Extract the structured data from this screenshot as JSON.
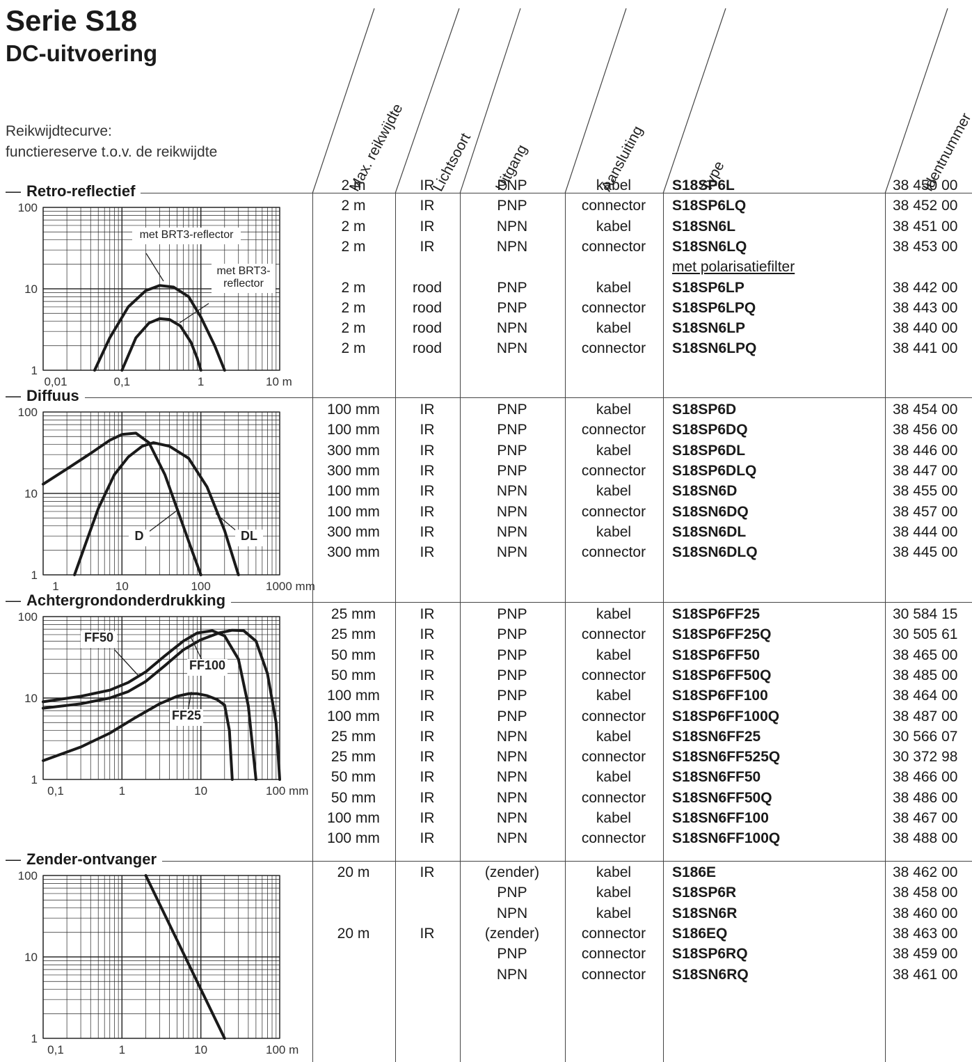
{
  "page": {
    "title": "Serie S18",
    "subtitle": "DC-uitvoering",
    "intro_line1": "Reikwijdtecurve:",
    "intro_line2": "functiereserve t.o.v. de reikwijdte"
  },
  "columns": [
    "Max. reikwijdte",
    "Lichtsoort",
    "Uitgang",
    "Aansluiting",
    "Type",
    "Identnummer"
  ],
  "sections": [
    {
      "label": "Retro-reflectief",
      "rows": [
        {
          "reach": "2 m",
          "light": "IR",
          "out": "PNP",
          "conn": "kabel",
          "type": "S18SP6L",
          "id": "38 450 00"
        },
        {
          "reach": "2 m",
          "light": "IR",
          "out": "PNP",
          "conn": "connector",
          "type": "S18SP6LQ",
          "id": "38 452 00"
        },
        {
          "reach": "2 m",
          "light": "IR",
          "out": "NPN",
          "conn": "kabel",
          "type": "S18SN6L",
          "id": "38 451 00"
        },
        {
          "reach": "2 m",
          "light": "IR",
          "out": "NPN",
          "conn": "connector",
          "type": "S18SN6LQ",
          "id": "38 453 00"
        },
        {
          "note": "met polarisatiefilter"
        },
        {
          "reach": "2 m",
          "light": "rood",
          "out": "PNP",
          "conn": "kabel",
          "type": "S18SP6LP",
          "id": "38 442 00"
        },
        {
          "reach": "2 m",
          "light": "rood",
          "out": "PNP",
          "conn": "connector",
          "type": "S18SP6LPQ",
          "id": "38 443 00"
        },
        {
          "reach": "2 m",
          "light": "rood",
          "out": "NPN",
          "conn": "kabel",
          "type": "S18SN6LP",
          "id": "38 440 00"
        },
        {
          "reach": "2 m",
          "light": "rood",
          "out": "NPN",
          "conn": "connector",
          "type": "S18SN6LPQ",
          "id": "38 441 00"
        }
      ]
    },
    {
      "label": "Diffuus",
      "rows": [
        {
          "reach": "100 mm",
          "light": "IR",
          "out": "PNP",
          "conn": "kabel",
          "type": "S18SP6D",
          "id": "38 454 00"
        },
        {
          "reach": "100 mm",
          "light": "IR",
          "out": "PNP",
          "conn": "connector",
          "type": "S18SP6DQ",
          "id": "38 456 00"
        },
        {
          "reach": "300 mm",
          "light": "IR",
          "out": "PNP",
          "conn": "kabel",
          "type": "S18SP6DL",
          "id": "38 446 00"
        },
        {
          "reach": "300 mm",
          "light": "IR",
          "out": "PNP",
          "conn": "connector",
          "type": "S18SP6DLQ",
          "id": "38 447 00"
        },
        {
          "reach": "100 mm",
          "light": "IR",
          "out": "NPN",
          "conn": "kabel",
          "type": "S18SN6D",
          "id": "38 455 00"
        },
        {
          "reach": "100 mm",
          "light": "IR",
          "out": "NPN",
          "conn": "connector",
          "type": "S18SN6DQ",
          "id": "38 457 00"
        },
        {
          "reach": "300 mm",
          "light": "IR",
          "out": "NPN",
          "conn": "kabel",
          "type": "S18SN6DL",
          "id": "38 444 00"
        },
        {
          "reach": "300 mm",
          "light": "IR",
          "out": "NPN",
          "conn": "connector",
          "type": "S18SN6DLQ",
          "id": "38 445 00"
        }
      ]
    },
    {
      "label": "Achtergrondonderdrukking",
      "rows": [
        {
          "reach": "25 mm",
          "light": "IR",
          "out": "PNP",
          "conn": "kabel",
          "type": "S18SP6FF25",
          "id": "30 584 15"
        },
        {
          "reach": "25 mm",
          "light": "IR",
          "out": "PNP",
          "conn": "connector",
          "type": "S18SP6FF25Q",
          "id": "30 505 61"
        },
        {
          "reach": "50 mm",
          "light": "IR",
          "out": "PNP",
          "conn": "kabel",
          "type": "S18SP6FF50",
          "id": "38 465 00"
        },
        {
          "reach": "50 mm",
          "light": "IR",
          "out": "PNP",
          "conn": "connector",
          "type": "S18SP6FF50Q",
          "id": "38 485 00"
        },
        {
          "reach": "100 mm",
          "light": "IR",
          "out": "PNP",
          "conn": "kabel",
          "type": "S18SP6FF100",
          "id": "38 464 00"
        },
        {
          "reach": "100 mm",
          "light": "IR",
          "out": "PNP",
          "conn": "connector",
          "type": "S18SP6FF100Q",
          "id": "38 487 00"
        },
        {
          "reach": "25 mm",
          "light": "IR",
          "out": "NPN",
          "conn": "kabel",
          "type": "S18SN6FF25",
          "id": "30 566 07"
        },
        {
          "reach": "25 mm",
          "light": "IR",
          "out": "NPN",
          "conn": "connector",
          "type": "S18SN6FF525Q",
          "id": "30 372 98"
        },
        {
          "reach": "50 mm",
          "light": "IR",
          "out": "NPN",
          "conn": "kabel",
          "type": "S18SN6FF50",
          "id": "38 466 00"
        },
        {
          "reach": "50 mm",
          "light": "IR",
          "out": "NPN",
          "conn": "connector",
          "type": "S18SN6FF50Q",
          "id": "38 486 00"
        },
        {
          "reach": "100 mm",
          "light": "IR",
          "out": "NPN",
          "conn": "kabel",
          "type": "S18SN6FF100",
          "id": "38 467 00"
        },
        {
          "reach": "100 mm",
          "light": "IR",
          "out": "NPN",
          "conn": "connector",
          "type": "S18SN6FF100Q",
          "id": "38 488 00"
        }
      ]
    },
    {
      "label": "Zender-ontvanger",
      "rows": [
        {
          "reach": "20 m",
          "light": "IR",
          "out": "(zender)",
          "conn": "kabel",
          "type": "S186E",
          "id": "38 462 00"
        },
        {
          "reach": "",
          "light": "",
          "out": "PNP",
          "conn": "kabel",
          "type": "S18SP6R",
          "id": "38 458 00"
        },
        {
          "reach": "",
          "light": "",
          "out": "NPN",
          "conn": "kabel",
          "type": "S18SN6R",
          "id": "38 460 00"
        },
        {
          "reach": "20 m",
          "light": "IR",
          "out": "(zender)",
          "conn": "connector",
          "type": "S186EQ",
          "id": "38 463 00"
        },
        {
          "reach": "",
          "light": "",
          "out": "PNP",
          "conn": "connector",
          "type": "S18SP6RQ",
          "id": "38 459 00"
        },
        {
          "reach": "",
          "light": "",
          "out": "NPN",
          "conn": "connector",
          "type": "S18SN6RQ",
          "id": "38 461 00"
        }
      ]
    }
  ],
  "chart_data": [
    {
      "type": "line",
      "section": "Retro-reflectief",
      "x_scale": "log",
      "y_scale": "log",
      "xlim": [
        0.01,
        10
      ],
      "ylim": [
        1,
        100
      ],
      "x_ticks": [
        "0,01",
        "0,1",
        "1",
        "10 m"
      ],
      "y_ticks": [
        "100",
        "10",
        "1"
      ],
      "grid": true,
      "annotations": [
        "met BRT3-reflector",
        "met BRT3-\nreflector"
      ],
      "series": [
        {
          "x": [
            0.045,
            0.07,
            0.12,
            0.2,
            0.3,
            0.45,
            0.7,
            1.0,
            1.5,
            2.0
          ],
          "y": [
            1,
            2.5,
            6,
            9.5,
            11,
            10.5,
            8,
            4.5,
            2,
            1
          ]
        },
        {
          "x": [
            0.1,
            0.15,
            0.22,
            0.3,
            0.4,
            0.55,
            0.75,
            0.9,
            1.0
          ],
          "y": [
            1,
            2.5,
            3.8,
            4.3,
            4.2,
            3.5,
            2.2,
            1.4,
            1
          ]
        }
      ]
    },
    {
      "type": "line",
      "section": "Diffuus",
      "x_scale": "log",
      "y_scale": "log",
      "xlim": [
        1,
        1000
      ],
      "ylim": [
        1,
        100
      ],
      "x_ticks": [
        "1",
        "10",
        "100",
        "1000 mm"
      ],
      "y_ticks": [
        "100",
        "10",
        "1"
      ],
      "grid": true,
      "annotations": [
        "D",
        "DL"
      ],
      "series": [
        {
          "name": "D",
          "x": [
            1,
            2,
            4,
            7,
            10,
            15,
            22,
            35,
            55,
            80,
            100
          ],
          "y": [
            13,
            20,
            31,
            45,
            53,
            55,
            42,
            17,
            5,
            1.8,
            1
          ]
        },
        {
          "name": "DL",
          "x": [
            2.5,
            3.5,
            5,
            8,
            12,
            18,
            25,
            40,
            70,
            120,
            200,
            300
          ],
          "y": [
            1,
            2.5,
            6.5,
            17,
            28,
            38,
            42,
            38,
            27,
            12,
            3.5,
            1
          ]
        }
      ]
    },
    {
      "type": "line",
      "section": "Achtergrondonderdrukking",
      "x_scale": "log",
      "y_scale": "log",
      "xlim": [
        0.1,
        100
      ],
      "ylim": [
        1,
        100
      ],
      "x_ticks": [
        "0,1",
        "1",
        "10",
        "100 mm"
      ],
      "y_ticks": [
        "100",
        "10",
        "1"
      ],
      "grid": true,
      "annotations": [
        "FF50",
        "FF100",
        "FF25"
      ],
      "series": [
        {
          "name": "FF50",
          "x": [
            0.1,
            0.3,
            0.7,
            1.2,
            2,
            3.5,
            6,
            9,
            14,
            20,
            30,
            40,
            50
          ],
          "y": [
            9,
            10.5,
            12.5,
            15.5,
            21,
            33,
            50,
            63,
            67,
            58,
            30,
            8,
            1
          ]
        },
        {
          "name": "FF100",
          "x": [
            0.1,
            0.3,
            0.7,
            1.2,
            2,
            3.5,
            6,
            10,
            17,
            25,
            35,
            50,
            70,
            90,
            100
          ],
          "y": [
            7.5,
            8.5,
            10,
            12,
            16,
            25,
            39,
            52,
            63,
            68,
            67,
            50,
            20,
            5,
            1
          ]
        },
        {
          "name": "FF25",
          "x": [
            0.1,
            0.3,
            0.7,
            1.5,
            3,
            5,
            7,
            9,
            12,
            16,
            20,
            23,
            25
          ],
          "y": [
            1.7,
            2.5,
            3.7,
            5.8,
            8.5,
            10.5,
            11.3,
            11.3,
            10.7,
            9.6,
            8.2,
            4,
            1
          ]
        }
      ]
    },
    {
      "type": "line",
      "section": "Zender-ontvanger",
      "x_scale": "log",
      "y_scale": "log",
      "xlim": [
        0.1,
        100
      ],
      "ylim": [
        1,
        100
      ],
      "x_ticks": [
        "0,1",
        "1",
        "10",
        "100 m"
      ],
      "y_ticks": [
        "100",
        "10",
        "1"
      ],
      "grid": true,
      "annotations": [],
      "series": [
        {
          "x": [
            2,
            20
          ],
          "y": [
            100,
            1
          ]
        }
      ]
    }
  ]
}
